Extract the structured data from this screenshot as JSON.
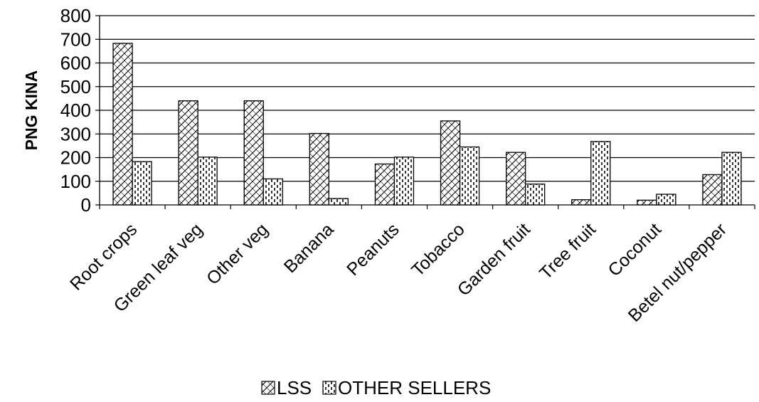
{
  "chart_data": {
    "type": "bar",
    "title": "",
    "xlabel": "",
    "ylabel": "PNG KINA",
    "ylim": [
      0,
      800
    ],
    "yticks": [
      0,
      100,
      200,
      300,
      400,
      500,
      600,
      700,
      800
    ],
    "grid": true,
    "legend_position": "bottom",
    "categories": [
      "Root crops",
      "Green leaf veg",
      "Other veg",
      "Banana",
      "Peanuts",
      "Tobacco",
      "Garden fruit",
      "Tree fruit",
      "Coconut",
      "Betel nut/pepper"
    ],
    "series": [
      {
        "name": "LSS",
        "pattern": "diagonal-hatch",
        "values": [
          683,
          440,
          440,
          302,
          173,
          355,
          222,
          22,
          20,
          128
        ]
      },
      {
        "name": "OTHER SELLERS",
        "pattern": "vertical-dash",
        "values": [
          183,
          202,
          110,
          27,
          202,
          245,
          88,
          268,
          45,
          222
        ]
      }
    ],
    "colors": {
      "bar_stroke": "#000000",
      "gridline": "#000000",
      "background": "#ffffff"
    }
  }
}
